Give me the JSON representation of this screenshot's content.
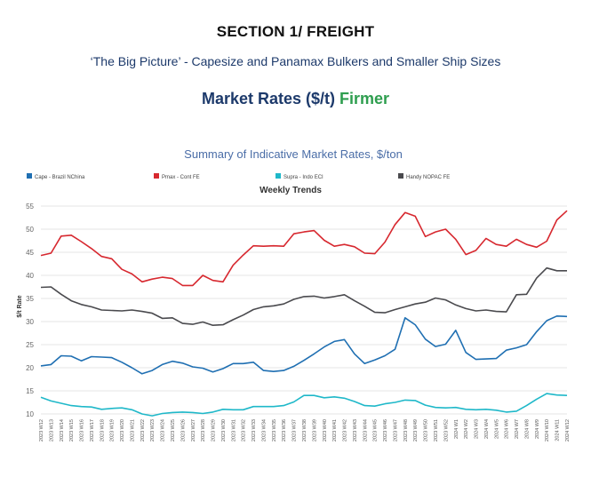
{
  "header": {
    "section_title": "SECTION 1/ FREIGHT",
    "subtitle": "‘The Big Picture’ - Capesize and Panamax Bulkers and Smaller Ship Sizes",
    "market_rates_label": "Market Rates ($/t)",
    "market_trend": "Firmer"
  },
  "chart_data": {
    "type": "line",
    "title": "Summary of Indicative Market Rates, $/ton",
    "subtitle": "Weekly Trends",
    "xlabel": "",
    "ylabel": "$/t Rate",
    "ylim": [
      10,
      55
    ],
    "yticks": [
      10,
      15,
      20,
      25,
      30,
      35,
      40,
      45,
      50,
      55
    ],
    "grid": true,
    "legend_position": "top",
    "categories": [
      "2023 W12",
      "2023 W13",
      "2023 W14",
      "2023 W15",
      "2023 W16",
      "2023 W17",
      "2023 W18",
      "2023 W19",
      "2023 W20",
      "2023 W21",
      "2023 W22",
      "2023 W23",
      "2023 W24",
      "2023 W25",
      "2023 W26",
      "2023 W27",
      "2023 W28",
      "2023 W29",
      "2023 W30",
      "2023 W31",
      "2023 W32",
      "2023 W33",
      "2023 W34",
      "2023 W35",
      "2023 W36",
      "2023 W37",
      "2023 W38",
      "2023 W39",
      "2023 W40",
      "2023 W41",
      "2023 W42",
      "2023 W43",
      "2023 W44",
      "2023 W45",
      "2023 W46",
      "2023 W47",
      "2023 W48",
      "2023 W49",
      "2023 W50",
      "2023 W51",
      "2023 W52",
      "2024 W1",
      "2024 W2",
      "2024 W3",
      "2024 W4",
      "2024 W5",
      "2024 W6",
      "2024 W7",
      "2024 W8",
      "2024 W9",
      "2024 W10",
      "2024 W11",
      "2024 W12"
    ],
    "series": [
      {
        "name": "Cape - Brazil NChina",
        "color": "#1f6fb2",
        "values": [
          20.4,
          20.7,
          22.6,
          22.5,
          21.5,
          22.4,
          22.3,
          22.2,
          21.2,
          20.0,
          18.7,
          19.4,
          20.7,
          21.4,
          21.0,
          20.2,
          19.9,
          19.1,
          19.8,
          20.9,
          20.9,
          21.2,
          19.4,
          19.2,
          19.4,
          20.3,
          21.6,
          23.0,
          24.5,
          25.7,
          26.1,
          23.0,
          20.9,
          21.7,
          22.6,
          24.0,
          30.8,
          29.3,
          26.2,
          24.6,
          25.1,
          28.1,
          23.3,
          21.8,
          21.9,
          22.0,
          23.8,
          24.3,
          25.0,
          27.8,
          30.2,
          31.2,
          31.1
        ]
      },
      {
        "name": "Pmax - Cont FE",
        "color": "#d7282f",
        "values": [
          44.3,
          44.8,
          48.5,
          48.7,
          47.3,
          45.8,
          44.1,
          43.6,
          41.3,
          40.3,
          38.6,
          39.2,
          39.6,
          39.3,
          37.8,
          37.8,
          40.0,
          38.9,
          38.6,
          42.2,
          44.4,
          46.4,
          46.3,
          46.4,
          46.3,
          49.0,
          49.4,
          49.7,
          47.6,
          46.3,
          46.7,
          46.2,
          44.8,
          44.7,
          47.2,
          51.0,
          53.6,
          52.8,
          48.4,
          49.4,
          50.0,
          47.8,
          44.5,
          45.4,
          48.0,
          46.7,
          46.3,
          47.8,
          46.7,
          46.1,
          47.4,
          52.0,
          54.0
        ]
      },
      {
        "name": "Supra - Indo ECI",
        "color": "#1fb8c9",
        "values": [
          13.6,
          12.8,
          12.3,
          11.8,
          11.6,
          11.5,
          11.0,
          11.2,
          11.3,
          10.9,
          10.0,
          9.6,
          10.1,
          10.3,
          10.4,
          10.3,
          10.1,
          10.4,
          11.0,
          10.9,
          10.9,
          11.6,
          11.6,
          11.6,
          11.8,
          12.6,
          14.0,
          14.0,
          13.5,
          13.7,
          13.4,
          12.7,
          11.8,
          11.7,
          12.2,
          12.5,
          13.0,
          12.9,
          11.9,
          11.4,
          11.3,
          11.4,
          11.0,
          10.9,
          11.0,
          10.8,
          10.4,
          10.6,
          11.8,
          13.2,
          14.4,
          14.1,
          14.0
        ]
      },
      {
        "name": "Handy NOPAC FE",
        "color": "#4a4a4e",
        "values": [
          37.4,
          37.5,
          35.9,
          34.5,
          33.7,
          33.2,
          32.5,
          32.4,
          32.3,
          32.5,
          32.2,
          31.8,
          30.7,
          30.8,
          29.6,
          29.4,
          29.9,
          29.2,
          29.3,
          30.4,
          31.4,
          32.6,
          33.2,
          33.4,
          33.8,
          34.8,
          35.4,
          35.5,
          35.1,
          35.4,
          35.8,
          34.5,
          33.3,
          32.0,
          31.9,
          32.6,
          33.2,
          33.8,
          34.2,
          35.1,
          34.7,
          33.6,
          32.8,
          32.3,
          32.5,
          32.2,
          32.1,
          35.8,
          35.9,
          39.4,
          41.6,
          41.0,
          41.0
        ]
      }
    ]
  }
}
